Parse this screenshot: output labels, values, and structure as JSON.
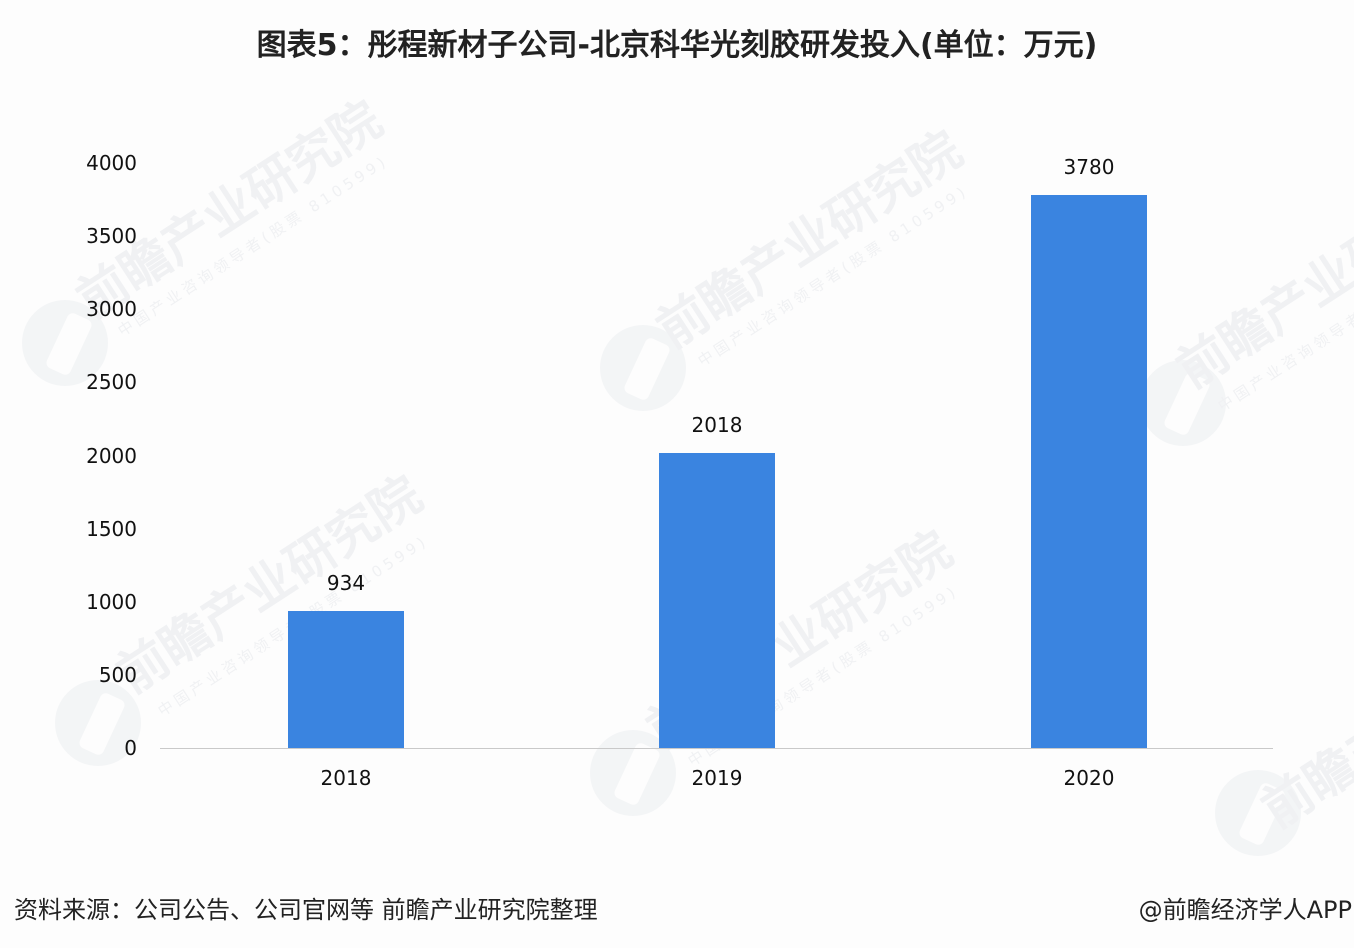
{
  "title": "图表5：彤程新材子公司-北京科华光刻胶研发投入(单位：万元)",
  "chart_data": {
    "type": "bar",
    "title": "图表5：彤程新材子公司-北京科华光刻胶研发投入(单位：万元)",
    "xlabel": "",
    "ylabel": "",
    "unit": "万元",
    "categories": [
      "2018",
      "2019",
      "2020"
    ],
    "values": [
      934,
      2018,
      3780
    ],
    "data_labels": [
      "934",
      "2018",
      "3780"
    ],
    "ylim": [
      0,
      4000
    ],
    "yticks": [
      "4000",
      "3500",
      "3000",
      "2500",
      "2000",
      "1500",
      "1000",
      "500",
      "0"
    ],
    "grid": false,
    "legend": null,
    "bar_color": "#3a84e0"
  },
  "watermark": {
    "text": "前瞻产业研究院",
    "subtext": "中国产业咨询领导者(股票 810599)"
  },
  "footer": {
    "source": "资料来源：公司公告、公司官网等 前瞻产业研究院整理",
    "credit": "@前瞻经济学人APP"
  }
}
